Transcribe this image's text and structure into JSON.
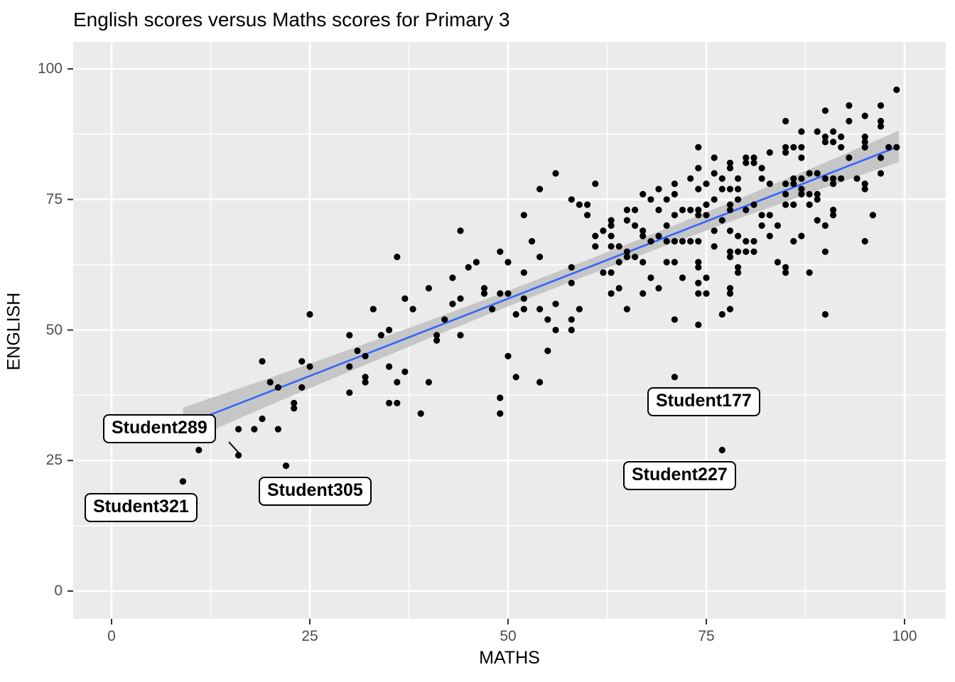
{
  "figure": {
    "title": "English scores versus Maths scores for Primary 3"
  },
  "chart_data": {
    "type": "scatter",
    "title": "English scores versus Maths scores for Primary 3",
    "xlabel": "MATHS",
    "ylabel": "ENGLISH",
    "xlim": [
      -4.8,
      105.2
    ],
    "ylim": [
      -5.3,
      105.2
    ],
    "x_ticks": [
      0,
      25,
      50,
      75,
      100
    ],
    "y_ticks": [
      0,
      25,
      50,
      75,
      100
    ],
    "grid": "major-white-minor-white-on-gray",
    "legend": "none",
    "colors": {
      "panel_bg": "#EBEBEB",
      "grid_major": "#FFFFFF",
      "grid_minor": "#FFFFFF",
      "point": "#000000",
      "smooth_line": "#3366FF",
      "ribbon": "#C6C6C6",
      "tick_text": "#4D4D4D",
      "tick_mark": "#333333",
      "label_box_bg": "#FFFFFF",
      "label_box_border": "#000000"
    },
    "smooth": {
      "method": "lm",
      "intercept": 26.4,
      "slope": 0.592,
      "x_start": 9,
      "x_end": 99.3,
      "band": [
        {
          "x": 9,
          "half": 3.4
        },
        {
          "x": 20,
          "half": 2.6
        },
        {
          "x": 30,
          "half": 2.1
        },
        {
          "x": 40,
          "half": 1.7
        },
        {
          "x": 50,
          "half": 1.5
        },
        {
          "x": 57,
          "half": 1.45
        },
        {
          "x": 70,
          "half": 1.6
        },
        {
          "x": 80,
          "half": 1.9
        },
        {
          "x": 90,
          "half": 2.4
        },
        {
          "x": 99.3,
          "half": 3.0
        }
      ]
    },
    "annotations": [
      {
        "label": "Student289",
        "point": [
          16,
          26
        ],
        "leader": true
      },
      {
        "label": "Student305",
        "point": [
          22,
          24
        ],
        "leader": false
      },
      {
        "label": "Student321",
        "point": [
          9,
          21
        ],
        "leader": false
      },
      {
        "label": "Student177",
        "point": [
          71,
          41
        ],
        "leader": false
      },
      {
        "label": "Student227",
        "point": [
          77,
          27
        ],
        "leader": false
      }
    ],
    "points": [
      [
        9,
        21
      ],
      [
        11,
        27
      ],
      [
        16,
        26
      ],
      [
        16,
        31
      ],
      [
        18,
        31
      ],
      [
        19,
        33
      ],
      [
        21,
        31
      ],
      [
        22,
        24
      ],
      [
        23,
        35
      ],
      [
        23,
        36
      ],
      [
        19,
        44
      ],
      [
        20,
        40
      ],
      [
        21,
        39
      ],
      [
        24,
        44
      ],
      [
        25,
        43
      ],
      [
        24,
        39
      ],
      [
        25,
        53
      ],
      [
        30,
        49
      ],
      [
        30,
        43
      ],
      [
        30,
        38
      ],
      [
        31,
        46
      ],
      [
        32,
        45
      ],
      [
        32,
        41
      ],
      [
        32,
        40
      ],
      [
        33,
        54
      ],
      [
        34,
        49
      ],
      [
        35,
        50
      ],
      [
        35,
        43
      ],
      [
        35,
        36
      ],
      [
        36,
        36
      ],
      [
        36,
        40
      ],
      [
        36,
        64
      ],
      [
        37,
        56
      ],
      [
        37,
        42
      ],
      [
        38,
        54
      ],
      [
        39,
        34
      ],
      [
        40,
        58
      ],
      [
        40,
        40
      ],
      [
        41,
        49
      ],
      [
        41,
        48
      ],
      [
        42,
        52
      ],
      [
        43,
        60
      ],
      [
        43,
        55
      ],
      [
        44,
        69
      ],
      [
        44,
        56
      ],
      [
        44,
        49
      ],
      [
        45,
        62
      ],
      [
        46,
        63
      ],
      [
        47,
        58
      ],
      [
        47,
        57
      ],
      [
        48,
        54
      ],
      [
        49,
        65
      ],
      [
        49,
        57
      ],
      [
        49,
        37
      ],
      [
        49,
        34
      ],
      [
        50,
        63
      ],
      [
        50,
        57
      ],
      [
        50,
        45
      ],
      [
        51,
        53
      ],
      [
        51,
        41
      ],
      [
        52,
        72
      ],
      [
        52,
        61
      ],
      [
        52,
        56
      ],
      [
        52,
        54
      ],
      [
        53,
        67
      ],
      [
        54,
        77
      ],
      [
        54,
        64
      ],
      [
        54,
        54
      ],
      [
        54,
        40
      ],
      [
        55,
        52
      ],
      [
        55,
        46
      ],
      [
        56,
        80
      ],
      [
        56,
        55
      ],
      [
        56,
        50
      ],
      [
        58,
        75
      ],
      [
        58,
        62
      ],
      [
        58,
        59
      ],
      [
        58,
        52
      ],
      [
        58,
        50
      ],
      [
        59,
        74
      ],
      [
        59,
        54
      ],
      [
        60,
        74
      ],
      [
        60,
        72
      ],
      [
        61,
        78
      ],
      [
        61,
        68
      ],
      [
        61,
        66
      ],
      [
        62,
        69
      ],
      [
        62,
        61
      ],
      [
        63,
        71
      ],
      [
        63,
        70
      ],
      [
        63,
        68
      ],
      [
        63,
        66
      ],
      [
        63,
        61
      ],
      [
        63,
        57
      ],
      [
        64,
        66
      ],
      [
        64,
        63
      ],
      [
        64,
        58
      ],
      [
        65,
        73
      ],
      [
        65,
        71
      ],
      [
        65,
        65
      ],
      [
        65,
        64
      ],
      [
        65,
        54
      ],
      [
        66,
        73
      ],
      [
        66,
        70
      ],
      [
        66,
        64
      ],
      [
        67,
        76
      ],
      [
        67,
        69
      ],
      [
        67,
        68
      ],
      [
        67,
        63
      ],
      [
        67,
        57
      ],
      [
        68,
        75
      ],
      [
        68,
        67
      ],
      [
        68,
        60
      ],
      [
        69,
        77
      ],
      [
        69,
        73
      ],
      [
        69,
        68
      ],
      [
        69,
        58
      ],
      [
        70,
        75
      ],
      [
        70,
        70
      ],
      [
        70,
        67
      ],
      [
        70,
        63
      ],
      [
        71,
        78
      ],
      [
        71,
        76
      ],
      [
        71,
        72
      ],
      [
        71,
        67
      ],
      [
        71,
        63
      ],
      [
        71,
        52
      ],
      [
        71,
        41
      ],
      [
        72,
        73
      ],
      [
        72,
        67
      ],
      [
        72,
        60
      ],
      [
        73,
        79
      ],
      [
        73,
        73
      ],
      [
        73,
        67
      ],
      [
        74,
        85
      ],
      [
        74,
        81
      ],
      [
        74,
        77
      ],
      [
        74,
        73
      ],
      [
        74,
        72
      ],
      [
        74,
        67
      ],
      [
        74,
        63
      ],
      [
        74,
        62
      ],
      [
        74,
        59
      ],
      [
        74,
        57
      ],
      [
        74,
        51
      ],
      [
        75,
        78
      ],
      [
        75,
        74
      ],
      [
        75,
        72
      ],
      [
        75,
        60
      ],
      [
        75,
        57
      ],
      [
        76,
        83
      ],
      [
        76,
        80
      ],
      [
        76,
        75
      ],
      [
        76,
        69
      ],
      [
        76,
        66
      ],
      [
        77,
        79
      ],
      [
        77,
        77
      ],
      [
        77,
        71
      ],
      [
        77,
        53
      ],
      [
        77,
        27
      ],
      [
        78,
        82
      ],
      [
        78,
        81
      ],
      [
        78,
        77
      ],
      [
        78,
        74
      ],
      [
        78,
        73
      ],
      [
        78,
        69
      ],
      [
        78,
        65
      ],
      [
        78,
        64
      ],
      [
        78,
        58
      ],
      [
        78,
        57
      ],
      [
        78,
        54
      ],
      [
        79,
        79
      ],
      [
        79,
        77
      ],
      [
        79,
        75
      ],
      [
        79,
        68
      ],
      [
        79,
        65
      ],
      [
        79,
        62
      ],
      [
        79,
        61
      ],
      [
        80,
        83
      ],
      [
        80,
        82
      ],
      [
        80,
        73
      ],
      [
        80,
        67
      ],
      [
        80,
        65
      ],
      [
        81,
        83
      ],
      [
        81,
        82
      ],
      [
        81,
        74
      ],
      [
        81,
        67
      ],
      [
        81,
        65
      ],
      [
        82,
        81
      ],
      [
        82,
        79
      ],
      [
        82,
        72
      ],
      [
        82,
        70
      ],
      [
        83,
        84
      ],
      [
        83,
        78
      ],
      [
        83,
        72
      ],
      [
        83,
        68
      ],
      [
        84,
        70
      ],
      [
        84,
        63
      ],
      [
        85,
        90
      ],
      [
        85,
        85
      ],
      [
        85,
        84
      ],
      [
        85,
        78
      ],
      [
        85,
        76
      ],
      [
        85,
        74
      ],
      [
        85,
        62
      ],
      [
        85,
        61
      ],
      [
        86,
        85
      ],
      [
        86,
        79
      ],
      [
        86,
        78
      ],
      [
        86,
        74
      ],
      [
        86,
        67
      ],
      [
        87,
        88
      ],
      [
        87,
        85
      ],
      [
        87,
        83
      ],
      [
        87,
        79
      ],
      [
        87,
        77
      ],
      [
        87,
        76
      ],
      [
        87,
        68
      ],
      [
        88,
        80
      ],
      [
        88,
        76
      ],
      [
        88,
        74
      ],
      [
        88,
        61
      ],
      [
        89,
        88
      ],
      [
        89,
        80
      ],
      [
        89,
        76
      ],
      [
        89,
        75
      ],
      [
        89,
        71
      ],
      [
        90,
        92
      ],
      [
        90,
        87
      ],
      [
        90,
        86
      ],
      [
        90,
        79
      ],
      [
        90,
        70
      ],
      [
        90,
        65
      ],
      [
        90,
        53
      ],
      [
        91,
        88
      ],
      [
        91,
        86
      ],
      [
        91,
        79
      ],
      [
        91,
        78
      ],
      [
        91,
        73
      ],
      [
        91,
        72
      ],
      [
        92,
        87
      ],
      [
        92,
        85
      ],
      [
        92,
        79
      ],
      [
        93,
        93
      ],
      [
        93,
        90
      ],
      [
        93,
        83
      ],
      [
        94,
        79
      ],
      [
        95,
        91
      ],
      [
        95,
        87
      ],
      [
        95,
        86
      ],
      [
        95,
        85
      ],
      [
        95,
        78
      ],
      [
        95,
        77
      ],
      [
        95,
        67
      ],
      [
        96,
        72
      ],
      [
        97,
        93
      ],
      [
        97,
        90
      ],
      [
        97,
        89
      ],
      [
        97,
        83
      ],
      [
        97,
        80
      ],
      [
        98,
        85
      ],
      [
        99,
        96
      ],
      [
        99,
        85
      ]
    ]
  }
}
